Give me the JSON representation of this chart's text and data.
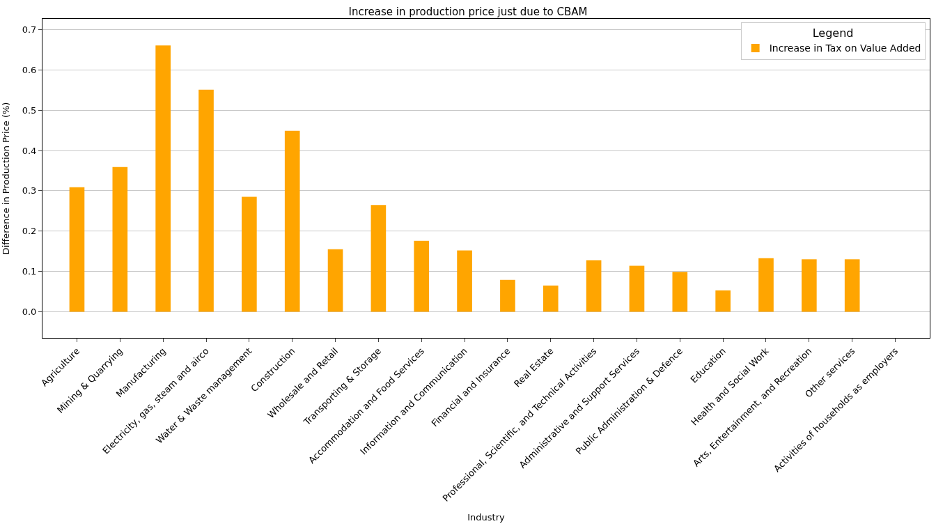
{
  "chart_data": {
    "type": "bar",
    "title": "Increase in production price just due to CBAM",
    "xlabel": "Industry",
    "ylabel": "Difference in Production Price (%)",
    "legend_title": "Legend",
    "categories": [
      "Agriculture",
      "Mining & Quarrying",
      "Manufacturing",
      "Electricity, gas, steam and airco",
      "Water & Waste management",
      "Construction",
      "Wholesale and Retail",
      "Transporting & Storage",
      "Accommodation and Food Services",
      "Information and Communication",
      "Financial and Insurance",
      "Real Estate",
      "Professional, Scientific, and Technical Activities",
      "Administrative and Support Services",
      "Public Administration & Defence",
      "Education",
      "Health and Social Work",
      "Arts, Entertainment, and Recreation",
      "Other services",
      "Activities of households as employers"
    ],
    "series": [
      {
        "name": "Increase in Tax on Value Added",
        "color": "#ffa500",
        "values": [
          0.309,
          0.359,
          0.661,
          0.551,
          0.285,
          0.449,
          0.155,
          0.265,
          0.176,
          0.152,
          0.079,
          0.065,
          0.128,
          0.114,
          0.099,
          0.053,
          0.133,
          0.13,
          0.13,
          0.0
        ]
      }
    ],
    "ylim": [
      -0.065,
      0.727
    ],
    "yticks": [
      {
        "value": 0,
        "label": "0.0"
      },
      0.1,
      0.2,
      0.3,
      0.4,
      0.5,
      0.6,
      0.7
    ],
    "grid": "y",
    "legend": "top right"
  }
}
